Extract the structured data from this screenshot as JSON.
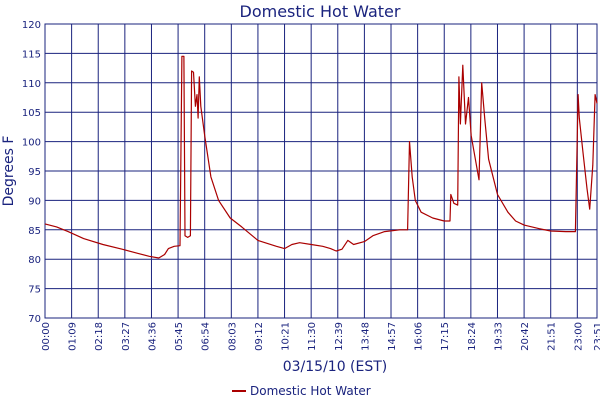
{
  "chart_data": {
    "type": "line",
    "title": "Domestic Hot Water",
    "xlabel": "03/15/10 (EST)",
    "ylabel": "Degrees F",
    "ylim": [
      70,
      120
    ],
    "yticks": [
      70,
      75,
      80,
      85,
      90,
      95,
      100,
      105,
      110,
      115,
      120
    ],
    "xlim": [
      "00:00",
      "23:51"
    ],
    "xticks": [
      "00:00",
      "01:09",
      "02:18",
      "03:27",
      "04:36",
      "05:45",
      "06:54",
      "08:03",
      "09:12",
      "10:21",
      "11:30",
      "12:39",
      "13:48",
      "14:57",
      "16:06",
      "17:15",
      "18:24",
      "19:33",
      "20:42",
      "21:51",
      "23:00",
      "23:51"
    ],
    "grid": true,
    "legend_position": "bottom",
    "colors": {
      "series": "#aa0000",
      "grid": "#1a237e",
      "text": "#1a237e"
    },
    "series": [
      {
        "name": "Domestic Hot Water",
        "points": [
          [
            "00:00",
            86
          ],
          [
            "00:30",
            85.5
          ],
          [
            "01:00",
            84.7
          ],
          [
            "01:40",
            83.5
          ],
          [
            "02:30",
            82.5
          ],
          [
            "03:20",
            81.7
          ],
          [
            "04:00",
            81.0
          ],
          [
            "04:30",
            80.5
          ],
          [
            "04:55",
            80.2
          ],
          [
            "05:10",
            80.8
          ],
          [
            "05:20",
            81.8
          ],
          [
            "05:35",
            82.2
          ],
          [
            "05:50",
            82.3
          ],
          [
            "05:55",
            114.5
          ],
          [
            "06:00",
            114.5
          ],
          [
            "06:03",
            84
          ],
          [
            "06:10",
            83.7
          ],
          [
            "06:17",
            84
          ],
          [
            "06:20",
            112
          ],
          [
            "06:25",
            111.8
          ],
          [
            "06:30",
            106
          ],
          [
            "06:34",
            108
          ],
          [
            "06:37",
            104
          ],
          [
            "06:40",
            111
          ],
          [
            "06:44",
            106
          ],
          [
            "06:54",
            101
          ],
          [
            "07:10",
            94
          ],
          [
            "07:30",
            90
          ],
          [
            "08:00",
            87
          ],
          [
            "08:30",
            85.5
          ],
          [
            "09:12",
            83.2
          ],
          [
            "10:00",
            82.2
          ],
          [
            "10:21",
            81.8
          ],
          [
            "10:40",
            82.5
          ],
          [
            "11:00",
            82.8
          ],
          [
            "11:30",
            82.5
          ],
          [
            "12:00",
            82.2
          ],
          [
            "12:20",
            81.8
          ],
          [
            "12:35",
            81.4
          ],
          [
            "12:50",
            81.7
          ],
          [
            "13:05",
            83.2
          ],
          [
            "13:20",
            82.5
          ],
          [
            "13:48",
            83.0
          ],
          [
            "14:10",
            84
          ],
          [
            "14:40",
            84.7
          ],
          [
            "15:20",
            85
          ],
          [
            "15:40",
            85
          ],
          [
            "15:45",
            100
          ],
          [
            "15:52",
            94
          ],
          [
            "16:00",
            90
          ],
          [
            "16:15",
            88
          ],
          [
            "16:45",
            87
          ],
          [
            "17:15",
            86.5
          ],
          [
            "17:30",
            86.5
          ],
          [
            "17:32",
            91
          ],
          [
            "17:40",
            89.5
          ],
          [
            "17:50",
            89.2
          ],
          [
            "17:53",
            111
          ],
          [
            "17:57",
            103
          ],
          [
            "18:03",
            113
          ],
          [
            "18:10",
            103
          ],
          [
            "18:18",
            107.5
          ],
          [
            "18:25",
            101
          ],
          [
            "18:45",
            93.5
          ],
          [
            "18:52",
            110
          ],
          [
            "19:00",
            104
          ],
          [
            "19:10",
            97
          ],
          [
            "19:33",
            91
          ],
          [
            "20:00",
            88
          ],
          [
            "20:20",
            86.5
          ],
          [
            "20:42",
            85.8
          ],
          [
            "21:20",
            85.2
          ],
          [
            "21:51",
            84.8
          ],
          [
            "22:30",
            84.7
          ],
          [
            "22:45",
            84.7
          ],
          [
            "22:55",
            84.7
          ],
          [
            "23:02",
            108
          ],
          [
            "23:05",
            104
          ],
          [
            "23:15",
            98
          ],
          [
            "23:25",
            92
          ],
          [
            "23:32",
            88.5
          ],
          [
            "23:40",
            96
          ],
          [
            "23:46",
            108
          ],
          [
            "23:51",
            106.5
          ]
        ]
      }
    ]
  }
}
